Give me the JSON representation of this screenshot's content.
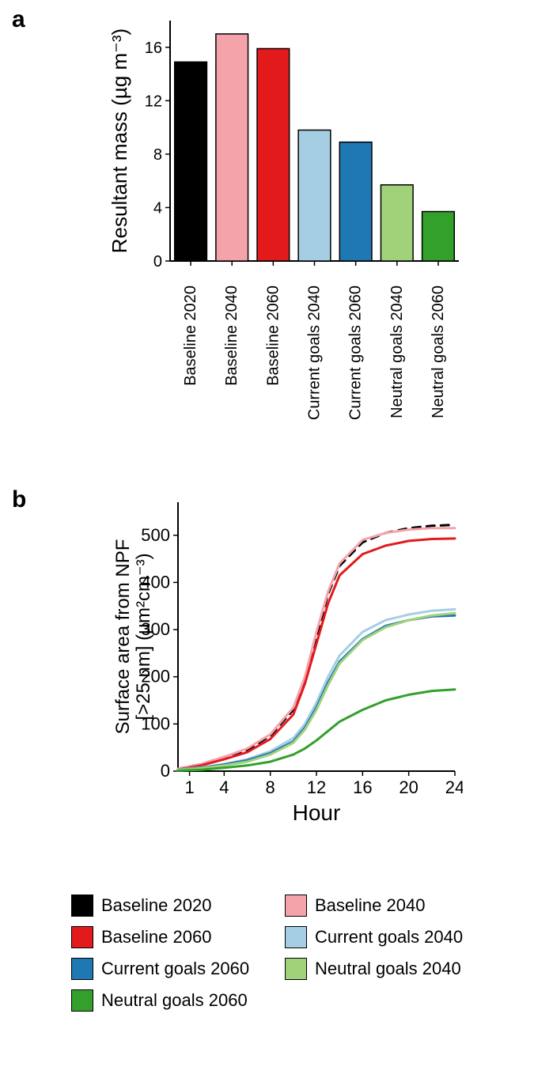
{
  "panels": {
    "a": "a",
    "b": "b"
  },
  "colors": {
    "baseline2020": "#000000",
    "baseline2040": "#f4a3ab",
    "baseline2060": "#e31a1c",
    "current2040": "#a6cee3",
    "current2060": "#1f78b4",
    "neutral2040": "#a1d27a",
    "neutral2060": "#33a02c",
    "axis": "#000000",
    "text": "#000000",
    "background": "#ffffff"
  },
  "legend": [
    {
      "key": "baseline2020",
      "label": "Baseline 2020"
    },
    {
      "key": "baseline2040",
      "label": "Baseline 2040"
    },
    {
      "key": "baseline2060",
      "label": "Baseline 2060"
    },
    {
      "key": "current2040",
      "label": "Current goals 2040"
    },
    {
      "key": "current2060",
      "label": "Current goals 2060"
    },
    {
      "key": "neutral2040",
      "label": "Neutral goals 2040"
    },
    {
      "key": "neutral2060",
      "label": "Neutral goals 2060"
    }
  ],
  "chartA": {
    "type": "bar",
    "ylabel": "Resultant mass (µg m⁻³)",
    "ylim": [
      0,
      18
    ],
    "yticks": [
      0,
      4,
      8,
      12,
      16
    ],
    "bar_width": 0.78,
    "stroke": "#000000",
    "stroke_width": 1.5,
    "label_fontsize": 20,
    "ylabel_fontsize": 26,
    "categories": [
      {
        "label": "Baseline 2020",
        "value": 14.9,
        "color_key": "baseline2020"
      },
      {
        "label": "Baseline 2040",
        "value": 17.0,
        "color_key": "baseline2040"
      },
      {
        "label": "Baseline 2060",
        "value": 15.9,
        "color_key": "baseline2060"
      },
      {
        "label": "Current goals 2040",
        "value": 9.8,
        "color_key": "current2040"
      },
      {
        "label": "Current goals 2060",
        "value": 8.9,
        "color_key": "current2060"
      },
      {
        "label": "Neutral goals 2040",
        "value": 5.7,
        "color_key": "neutral2040"
      },
      {
        "label": "Neutral goals 2060",
        "value": 3.7,
        "color_key": "neutral2060"
      }
    ]
  },
  "chartB": {
    "type": "line",
    "xlabel": "Hour",
    "ylabel_line1": "Surface area from NPF",
    "ylabel_line2": "[>25 nm] (µm²cm⁻³)",
    "xlim": [
      0,
      24
    ],
    "ylim": [
      0,
      570
    ],
    "xticks": [
      1,
      4,
      8,
      12,
      16,
      20,
      24
    ],
    "yticks": [
      0,
      100,
      200,
      300,
      400,
      500
    ],
    "label_fontsize": 22,
    "axis_title_fontsize": 28,
    "line_width": 3,
    "series": [
      {
        "color_key": "baseline2020",
        "dash": true,
        "points": [
          [
            0,
            5
          ],
          [
            2,
            15
          ],
          [
            4,
            30
          ],
          [
            6,
            45
          ],
          [
            8,
            75
          ],
          [
            10,
            130
          ],
          [
            11,
            195
          ],
          [
            12,
            285
          ],
          [
            13,
            375
          ],
          [
            14,
            435
          ],
          [
            16,
            485
          ],
          [
            18,
            505
          ],
          [
            20,
            515
          ],
          [
            22,
            520
          ],
          [
            24,
            522
          ]
        ]
      },
      {
        "color_key": "baseline2040",
        "dash": false,
        "points": [
          [
            0,
            5
          ],
          [
            2,
            15
          ],
          [
            4,
            30
          ],
          [
            6,
            48
          ],
          [
            8,
            78
          ],
          [
            10,
            135
          ],
          [
            11,
            200
          ],
          [
            12,
            295
          ],
          [
            13,
            380
          ],
          [
            14,
            440
          ],
          [
            16,
            490
          ],
          [
            18,
            505
          ],
          [
            20,
            512
          ],
          [
            22,
            515
          ],
          [
            24,
            515
          ]
        ]
      },
      {
        "color_key": "baseline2060",
        "dash": false,
        "points": [
          [
            0,
            3
          ],
          [
            2,
            12
          ],
          [
            4,
            25
          ],
          [
            6,
            40
          ],
          [
            8,
            68
          ],
          [
            10,
            120
          ],
          [
            11,
            185
          ],
          [
            12,
            270
          ],
          [
            13,
            355
          ],
          [
            14,
            415
          ],
          [
            16,
            460
          ],
          [
            18,
            478
          ],
          [
            20,
            488
          ],
          [
            22,
            492
          ],
          [
            24,
            493
          ]
        ]
      },
      {
        "color_key": "current2040",
        "dash": false,
        "points": [
          [
            0,
            3
          ],
          [
            2,
            8
          ],
          [
            4,
            15
          ],
          [
            6,
            25
          ],
          [
            8,
            42
          ],
          [
            10,
            70
          ],
          [
            11,
            100
          ],
          [
            12,
            145
          ],
          [
            13,
            200
          ],
          [
            14,
            245
          ],
          [
            16,
            295
          ],
          [
            18,
            320
          ],
          [
            20,
            332
          ],
          [
            22,
            340
          ],
          [
            24,
            343
          ]
        ]
      },
      {
        "color_key": "current2060",
        "dash": false,
        "points": [
          [
            0,
            2
          ],
          [
            2,
            7
          ],
          [
            4,
            14
          ],
          [
            6,
            23
          ],
          [
            8,
            38
          ],
          [
            10,
            63
          ],
          [
            11,
            92
          ],
          [
            12,
            135
          ],
          [
            13,
            188
          ],
          [
            14,
            232
          ],
          [
            16,
            280
          ],
          [
            18,
            308
          ],
          [
            20,
            320
          ],
          [
            22,
            328
          ],
          [
            24,
            330
          ]
        ]
      },
      {
        "color_key": "neutral2040",
        "dash": false,
        "points": [
          [
            0,
            2
          ],
          [
            2,
            6
          ],
          [
            4,
            12
          ],
          [
            6,
            20
          ],
          [
            8,
            35
          ],
          [
            10,
            60
          ],
          [
            11,
            88
          ],
          [
            12,
            130
          ],
          [
            13,
            182
          ],
          [
            14,
            228
          ],
          [
            16,
            278
          ],
          [
            18,
            305
          ],
          [
            20,
            320
          ],
          [
            22,
            330
          ],
          [
            24,
            335
          ]
        ]
      },
      {
        "color_key": "neutral2060",
        "dash": false,
        "points": [
          [
            0,
            1
          ],
          [
            2,
            3
          ],
          [
            4,
            7
          ],
          [
            6,
            12
          ],
          [
            8,
            20
          ],
          [
            10,
            35
          ],
          [
            11,
            48
          ],
          [
            12,
            65
          ],
          [
            13,
            85
          ],
          [
            14,
            105
          ],
          [
            16,
            130
          ],
          [
            18,
            150
          ],
          [
            20,
            162
          ],
          [
            22,
            170
          ],
          [
            24,
            173
          ]
        ]
      }
    ]
  }
}
